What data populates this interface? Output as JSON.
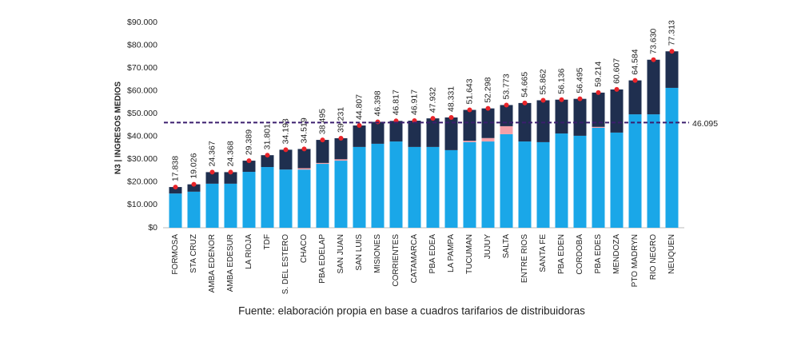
{
  "chart_data": {
    "type": "stacked-bar",
    "ylabel": "N3 | INGRESOS MEDIOS",
    "note": "Fuente: elaboración propia en base a cuadros tarifarios de distribuidoras",
    "categories": [
      "FORMOSA",
      "STA CRUZ",
      "AMBA EDENOR",
      "AMBA EDESUR",
      "LA RIOJA",
      "TDF",
      "S. DEL ESTERO",
      "CHACO",
      "PBA EDELAP",
      "SAN JUAN",
      "SAN LUIS",
      "MISIONES",
      "CORRIENTES",
      "CATAMARCA",
      "PBA EDEA",
      "LA PAMPA",
      "TUCUMAN",
      "JUJUY",
      "SALTA",
      "ENTRE RIOS",
      "SANTA FE",
      "PBA EDEN",
      "CORDOBA",
      "PBA EDES",
      "MENDOZA",
      "PTO MADRYN",
      "RIO NEGRO",
      "NEUQUEN"
    ],
    "series": [
      {
        "color": "#1aa7e8",
        "values": [
          15000,
          15800,
          19300,
          19300,
          24500,
          26600,
          25500,
          25500,
          28000,
          29400,
          35400,
          36800,
          37800,
          35400,
          35400,
          34000,
          37500,
          37800,
          41000,
          37800,
          37500,
          41300,
          40300,
          43800,
          41700,
          49700,
          49700,
          61300
        ]
      },
      {
        "color": "#f4a0a8",
        "values": [
          0,
          0,
          0,
          0,
          0,
          0,
          0,
          600,
          400,
          600,
          0,
          0,
          0,
          0,
          0,
          0,
          600,
          1500,
          3500,
          0,
          0,
          0,
          0,
          400,
          0,
          0,
          0,
          0
        ]
      },
      {
        "color": "#1f2f4f",
        "values": [
          2838,
          3226,
          5067,
          5068,
          4889,
          5201,
          8693,
          8419,
          10095,
          9231,
          9407,
          9598,
          9017,
          11517,
          12532,
          14331,
          13543,
          12998,
          9273,
          16865,
          18362,
          14836,
          16195,
          15014,
          18907,
          14884,
          23930,
          16013
        ]
      }
    ],
    "totals": {
      "color": "#e8242a",
      "values": [
        17838,
        19026,
        24367,
        24368,
        29389,
        31801,
        34193,
        34519,
        38495,
        39231,
        44807,
        46398,
        46817,
        46917,
        47932,
        48331,
        51643,
        52298,
        53773,
        54665,
        55862,
        56136,
        56495,
        59214,
        60607,
        64584,
        73630,
        77313
      ],
      "value_labels": [
        "17.838",
        "19.026",
        "24.367",
        "24.368",
        "29.389",
        "31.801",
        "34.193",
        "34.519",
        "38.495",
        "39.231",
        "44.807",
        "46.398",
        "46.817",
        "46.917",
        "47.932",
        "48.331",
        "51.643",
        "52.298",
        "53.773",
        "54.665",
        "55.862",
        "56.136",
        "56.495",
        "59.214",
        "60.607",
        "64.584",
        "73.630",
        "77.313"
      ]
    },
    "reference": {
      "value": 46095,
      "label": "46.095",
      "color": "#3b1e6e"
    },
    "ylim": [
      0,
      90000
    ],
    "yticks": [
      {
        "value": 0,
        "label": "$0"
      },
      {
        "value": 10000,
        "label": "$10.000"
      },
      {
        "value": 20000,
        "label": "$20.000"
      },
      {
        "value": 30000,
        "label": "$30.000"
      },
      {
        "value": 40000,
        "label": "$40.000"
      },
      {
        "value": 50000,
        "label": "$50.000"
      },
      {
        "value": 60000,
        "label": "$60.000"
      },
      {
        "value": 70000,
        "label": "$70.000"
      },
      {
        "value": 80000,
        "label": "$80.000"
      },
      {
        "value": 90000,
        "label": "$90.000"
      }
    ],
    "grid": false
  }
}
